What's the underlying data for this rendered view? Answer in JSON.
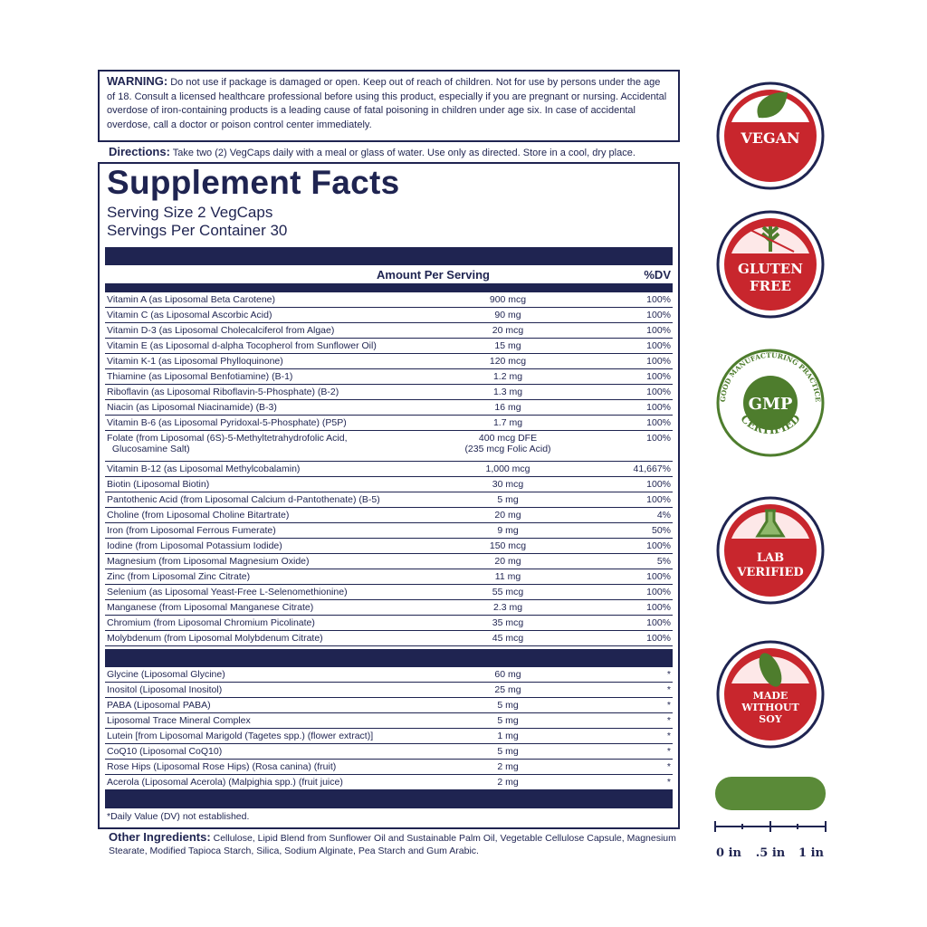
{
  "warning": {
    "label": "WARNING:",
    "text": "Do not use if package is damaged or open. Keep out of reach of children. Not for use by persons under the age of 18. Consult a licensed healthcare professional before using this product, especially if you are pregnant or nursing. Accidental overdose of iron-containing products is a leading cause of fatal poisoning in children under age six. In case of accidental overdose, call a doctor or poison control center immediately."
  },
  "directions": {
    "label": "Directions:",
    "text": "Take two (2) VegCaps daily with a meal or glass of water. Use only as directed. Store in a cool, dry place."
  },
  "facts": {
    "title": "Supplement Facts",
    "serving_size": "Serving Size 2 VegCaps",
    "servings_per_container": "Servings Per Container 30",
    "header": [
      "Amount Per Serving",
      "%DV"
    ],
    "rows": [
      [
        "Vitamin A (as Liposomal Beta Carotene)",
        "900 mcg",
        "100%"
      ],
      [
        "Vitamin C (as Liposomal Ascorbic Acid)",
        "90 mg",
        "100%"
      ],
      [
        "Vitamin D-3 (as Liposomal Cholecalciferol from Algae)",
        "20 mcg",
        "100%"
      ],
      [
        "Vitamin E (as Liposomal d-alpha Tocopherol from Sunflower Oil)",
        "15 mg",
        "100%"
      ],
      [
        "Vitamin K-1 (as Liposomal Phylloquinone)",
        "120 mcg",
        "100%"
      ],
      [
        "Thiamine (as Liposomal Benfotiamine) (B-1)",
        "1.2 mg",
        "100%"
      ],
      [
        "Riboflavin (as Liposomal Riboflavin-5-Phosphate) (B-2)",
        "1.3 mg",
        "100%"
      ],
      [
        "Niacin (as Liposomal Niacinamide) (B-3)",
        "16 mg",
        "100%"
      ],
      [
        "Vitamin B-6 (as Liposomal Pyridoxal-5-Phosphate) (P5P)",
        "1.7 mg",
        "100%"
      ],
      [
        "Folate (from Liposomal (6S)-5-Methyltetrahydrofolic Acid,\n  Glucosamine Salt)",
        "400 mcg DFE\n(235 mcg Folic Acid)",
        "100%"
      ],
      [
        "Vitamin B-12 (as Liposomal Methylcobalamin)",
        "1,000 mcg",
        "41,667%"
      ],
      [
        "Biotin (Liposomal Biotin)",
        "30 mcg",
        "100%"
      ],
      [
        "Pantothenic Acid (from Liposomal Calcium d-Pantothenate) (B-5)",
        "5 mg",
        "100%"
      ],
      [
        "Choline (from Liposomal Choline Bitartrate)",
        "20 mg",
        "4%"
      ],
      [
        "Iron (from Liposomal Ferrous Fumerate)",
        "9 mg",
        "50%"
      ],
      [
        "Iodine (from Liposomal Potassium Iodide)",
        "150 mcg",
        "100%"
      ],
      [
        "Magnesium (from Liposomal Magnesium Oxide)",
        "20 mg",
        "5%"
      ],
      [
        "Zinc (from Liposomal Zinc Citrate)",
        "11 mg",
        "100%"
      ],
      [
        "Selenium (as Liposomal Yeast-Free L-Selenomethionine)",
        "55 mcg",
        "100%"
      ],
      [
        "Manganese (from Liposomal Manganese Citrate)",
        "2.3 mg",
        "100%"
      ],
      [
        "Chromium (from Liposomal Chromium Picolinate)",
        "35 mcg",
        "100%"
      ],
      [
        "Molybdenum (from Liposomal Molybdenum Citrate)",
        "45 mcg",
        "100%"
      ]
    ],
    "other_rows": [
      [
        "Glycine (Liposomal Glycine)",
        "60 mg",
        "*"
      ],
      [
        "Inositol (Liposomal Inositol)",
        "25 mg",
        "*"
      ],
      [
        "PABA (Liposomal PABA)",
        "5 mg",
        "*"
      ],
      [
        "Liposomal Trace Mineral Complex",
        "5 mg",
        "*"
      ],
      [
        "Lutein [from Liposomal Marigold (Tagetes spp.) (flower extract)]",
        "1 mg",
        "*"
      ],
      [
        "CoQ10 (Liposomal CoQ10)",
        "5 mg",
        "*"
      ],
      [
        "Rose Hips (Liposomal Rose Hips) (Rosa canina) (fruit)",
        "2 mg",
        "*"
      ],
      [
        "Acerola (Liposomal Acerola) (Malpighia spp.) (fruit juice)",
        "2 mg",
        "*"
      ]
    ],
    "footnote": "*Daily Value (DV) not established."
  },
  "other_ingredients": {
    "label": "Other Ingredients:",
    "text": "Cellulose, Lipid Blend from Sunflower Oil and Sustainable Palm Oil, Vegetable Cellulose Capsule, Magnesium Stearate, Modified Tapioca Starch, Silica, Sodium Alginate, Pea Starch and Gum Arabic."
  },
  "badges": [
    {
      "lines": [
        "VEGAN"
      ]
    },
    {
      "lines": [
        "GLUTEN",
        "FREE"
      ]
    },
    {
      "arc": "GOOD MANUFACTURING PRACTICE",
      "lines": [
        "GMP"
      ],
      "arc2": "CERTIFIED"
    },
    {
      "lines": [
        "LAB",
        "VERIFIED"
      ]
    },
    {
      "lines": [
        "MADE",
        "WITHOUT",
        "SOY"
      ]
    }
  ],
  "scale": [
    "0 in",
    ".5 in",
    "1 in"
  ]
}
